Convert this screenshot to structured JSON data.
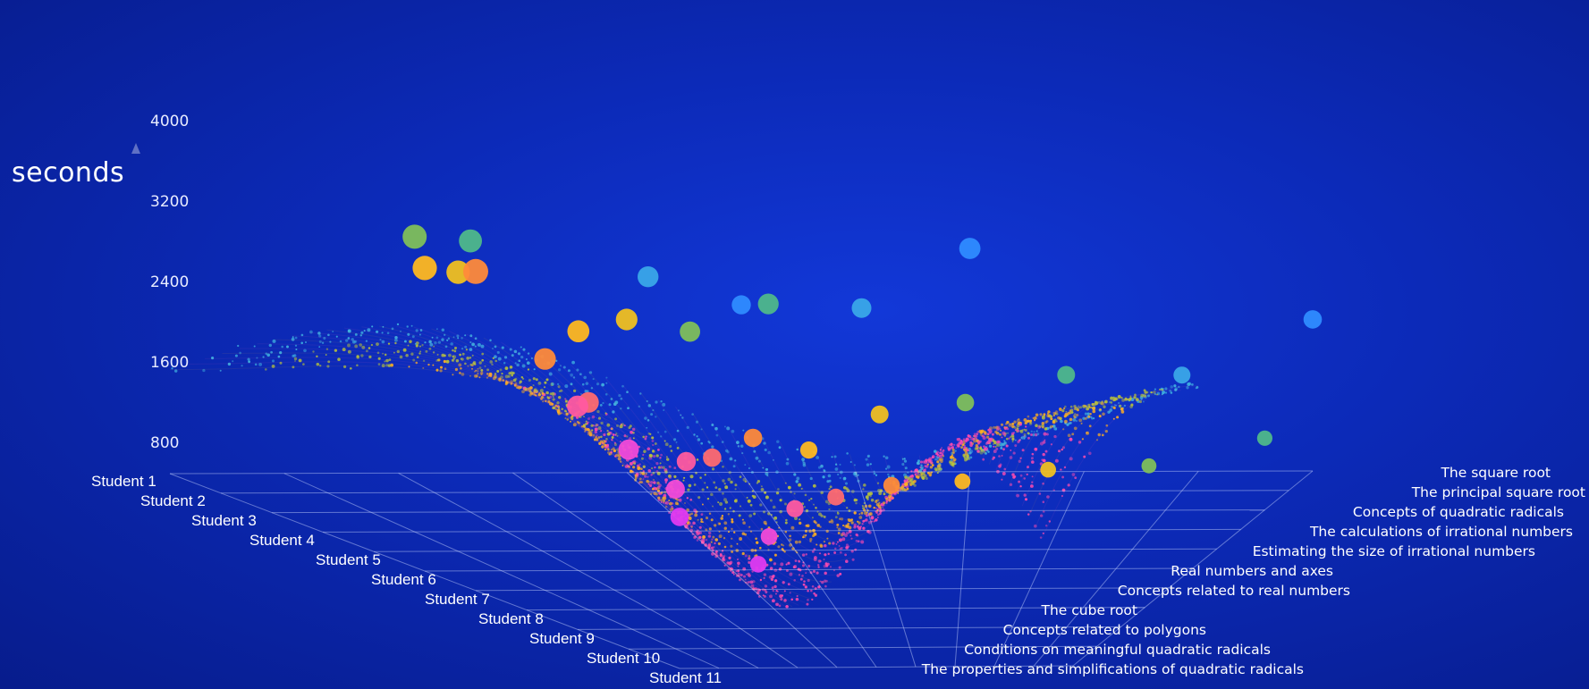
{
  "chart_data": {
    "type": "scatter",
    "title": "",
    "ylabel": "seconds",
    "y_ticks": [
      "800",
      "1600",
      "2400",
      "3200",
      "4000"
    ],
    "students": [
      "Student 1",
      "Student 2",
      "Student 3",
      "Student 4",
      "Student 5",
      "Student 6",
      "Student 7",
      "Student 8",
      "Student 9",
      "Student 10",
      "Student 11"
    ],
    "topics": [
      "The square root",
      "The principal square root",
      "Concepts of quadratic radicals",
      "The calculations of irrational numbers",
      "Estimating the size of irrational numbers",
      "Real numbers and axes",
      "Concepts related to real numbers",
      "The cube root",
      "Concepts related to polygons",
      "Conditions on meaningful quadratic radicals",
      "The properties and simplifications of quadratic radicals"
    ],
    "grid": true,
    "points": [
      {
        "student": 1,
        "topic": 1,
        "seconds": 1900
      },
      {
        "student": 1,
        "topic": 4,
        "seconds": 2800
      },
      {
        "student": 1,
        "topic": 6,
        "seconds": 2100
      },
      {
        "student": 2,
        "topic": 2,
        "seconds": 1450
      },
      {
        "student": 2,
        "topic": 5,
        "seconds": 2300
      },
      {
        "student": 2,
        "topic": 7,
        "seconds": 2700
      },
      {
        "student": 3,
        "topic": 1,
        "seconds": 900
      },
      {
        "student": 3,
        "topic": 3,
        "seconds": 1700
      },
      {
        "student": 3,
        "topic": 6,
        "seconds": 2600
      },
      {
        "student": 3,
        "topic": 9,
        "seconds": 3400
      },
      {
        "student": 4,
        "topic": 2,
        "seconds": 800
      },
      {
        "student": 4,
        "topic": 4,
        "seconds": 1600
      },
      {
        "student": 4,
        "topic": 7,
        "seconds": 2500
      },
      {
        "student": 4,
        "topic": 10,
        "seconds": 3700
      },
      {
        "student": 5,
        "topic": 3,
        "seconds": 1000
      },
      {
        "student": 5,
        "topic": 5,
        "seconds": 1700
      },
      {
        "student": 5,
        "topic": 8,
        "seconds": 2900
      },
      {
        "student": 5,
        "topic": 10,
        "seconds": 3500
      },
      {
        "student": 6,
        "topic": 4,
        "seconds": 1100
      },
      {
        "student": 6,
        "topic": 6,
        "seconds": 1500
      },
      {
        "student": 6,
        "topic": 9,
        "seconds": 3000
      },
      {
        "student": 6,
        "topic": 11,
        "seconds": 3800
      },
      {
        "student": 7,
        "topic": 5,
        "seconds": 1300
      },
      {
        "student": 7,
        "topic": 7,
        "seconds": 1900
      },
      {
        "student": 7,
        "topic": 10,
        "seconds": 2900
      },
      {
        "student": 7,
        "topic": 11,
        "seconds": 4000
      },
      {
        "student": 8,
        "topic": 6,
        "seconds": 1400
      },
      {
        "student": 8,
        "topic": 8,
        "seconds": 1900
      },
      {
        "student": 8,
        "topic": 10,
        "seconds": 2600
      },
      {
        "student": 9,
        "topic": 7,
        "seconds": 1500
      },
      {
        "student": 9,
        "topic": 9,
        "seconds": 2100
      },
      {
        "student": 9,
        "topic": 11,
        "seconds": 2800
      },
      {
        "student": 10,
        "topic": 8,
        "seconds": 1400
      },
      {
        "student": 10,
        "topic": 10,
        "seconds": 2000
      },
      {
        "student": 10,
        "topic": 11,
        "seconds": 2500
      },
      {
        "student": 11,
        "topic": 9,
        "seconds": 1300
      },
      {
        "student": 11,
        "topic": 11,
        "seconds": 1900
      }
    ]
  }
}
